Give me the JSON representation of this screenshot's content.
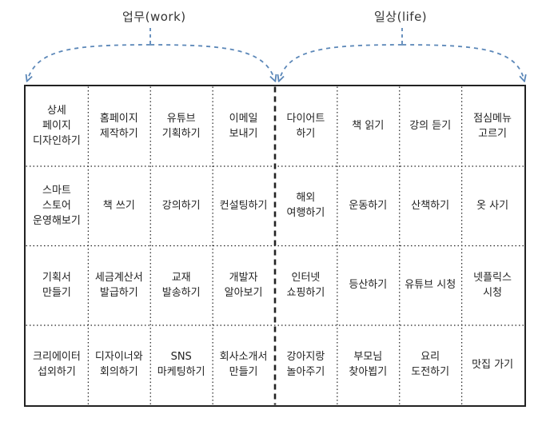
{
  "sections": {
    "work": {
      "label": "업무(work)"
    },
    "life": {
      "label": "일상(life)"
    }
  },
  "colors": {
    "arrow": "#5b87b8",
    "border": "#222222"
  },
  "grid": {
    "rows": [
      [
        "상세\n페이지\n디자인하기",
        "홈페이지\n제작하기",
        "유튜브\n기획하기",
        "이메일\n보내기",
        "다이어트\n하기",
        "책 읽기",
        "강의 듣기",
        "점심메뉴\n고르기"
      ],
      [
        "스마트\n스토어\n운영해보기",
        "책 쓰기",
        "강의하기",
        "컨설팅하기",
        "해외\n여행하기",
        "운동하기",
        "산책하기",
        "옷 사기"
      ],
      [
        "기획서\n만들기",
        "세금계산서\n발급하기",
        "교재\n발송하기",
        "개발자\n알아보기",
        "인터넷\n쇼핑하기",
        "등산하기",
        "유튜브 시청",
        "넷플릭스\n시청"
      ],
      [
        "크리에이터\n섭외하기",
        "디자이너와\n회의하기",
        "SNS\n마케팅하기",
        "회사소개서\n만들기",
        "강아지랑\n놀아주기",
        "부모님\n찾아뵙기",
        "요리\n도전하기",
        "맛집 가기"
      ]
    ]
  }
}
